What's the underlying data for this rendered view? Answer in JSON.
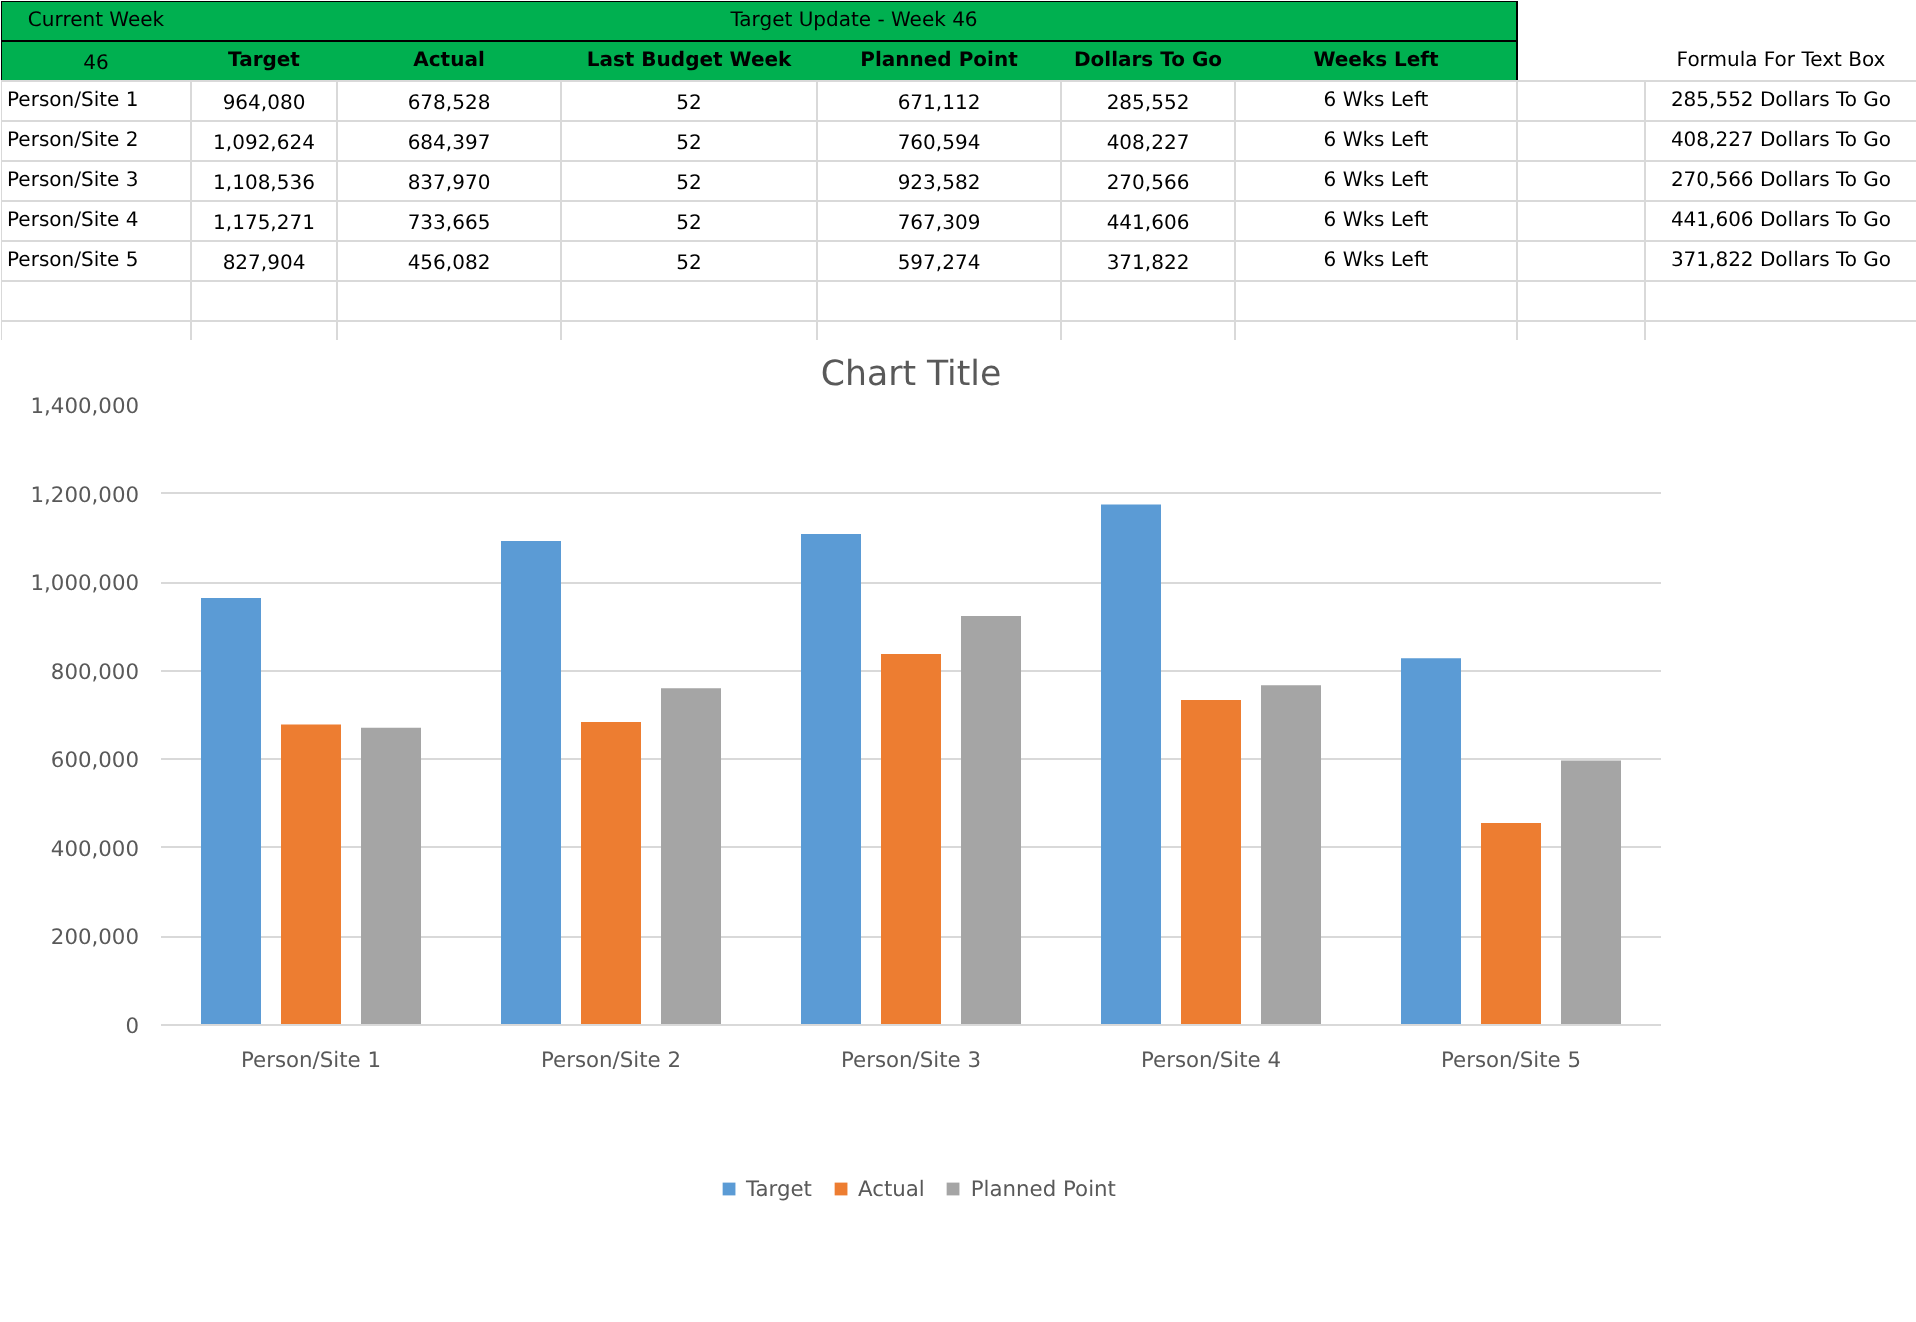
{
  "chart_data": [
    {
      "type": "other",
      "title": "Target Update - Week 46",
      "annotations": [
        "Current Week",
        "46",
        "Target",
        "Actual",
        "Last Budget Week",
        "Planned Point",
        "Dollars To Go",
        "Weeks Left",
        "Formula For Text Box",
        "Person/Site 1",
        "964,080",
        "678,528",
        "52",
        "671,112",
        "285,552",
        "6 Wks Left",
        "285,552 Dollars To Go",
        "Person/Site 2",
        "1,092,624",
        "684,397",
        "52",
        "760,594",
        "408,227",
        "6 Wks Left",
        "408,227 Dollars To Go",
        "Person/Site 3",
        "1,108,536",
        "837,970",
        "52",
        "923,582",
        "270,566",
        "6 Wks Left",
        "270,566 Dollars To Go",
        "Person/Site 4",
        "1,175,271",
        "733,665",
        "52",
        "767,309",
        "441,606",
        "6 Wks Left",
        "441,606 Dollars To Go",
        "Person/Site 5",
        "827,904",
        "456,082",
        "52",
        "597,274",
        "371,822",
        "6 Wks Left",
        "371,822 Dollars To Go"
      ]
    },
    {
      "type": "bar",
      "title": "Chart Title",
      "categories": [
        "Person/Site 1",
        "Person/Site 2",
        "Person/Site 3",
        "Person/Site 4",
        "Person/Site 5"
      ],
      "series": [
        {
          "name": "Target",
          "color": "#5b9bd5",
          "values": [
            964080,
            1092624,
            1108536,
            1175271,
            827904
          ]
        },
        {
          "name": "Actual",
          "color": "#ed7d31",
          "values": [
            678528,
            684397,
            837970,
            733665,
            456082
          ]
        },
        {
          "name": "Planned Point",
          "color": "#a5a5a5",
          "values": [
            671112,
            760594,
            923582,
            767309,
            597274
          ]
        }
      ],
      "ylim": [
        0,
        1400000
      ],
      "yticks": [
        0,
        {
          "value": 200000,
          "label": "200,000"
        },
        {
          "value": 400000,
          "label": "400,000"
        },
        {
          "value": 600000,
          "label": "600,000"
        },
        {
          "value": 800000,
          "label": "800,000"
        },
        {
          "value": 1000000,
          "label": "1,000,000"
        },
        {
          "value": 1200000,
          "label": "1,200,000"
        },
        {
          "value": 1400000,
          "label": "1,400,000"
        }
      ],
      "grid": "y",
      "legend": "bottom"
    }
  ]
}
